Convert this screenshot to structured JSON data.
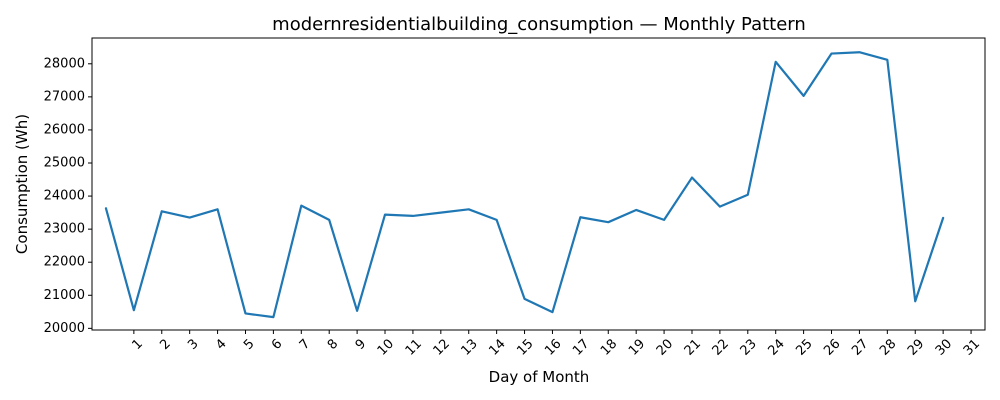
{
  "chart_data": {
    "type": "line",
    "title": "modernresidentialbuilding_consumption — Monthly Pattern",
    "xlabel": "Day of Month",
    "ylabel": "Consumption (Wh)",
    "x_ticks": [
      "1",
      "2",
      "3",
      "4",
      "5",
      "6",
      "7",
      "8",
      "9",
      "10",
      "11",
      "12",
      "13",
      "14",
      "15",
      "16",
      "17",
      "18",
      "19",
      "20",
      "21",
      "22",
      "23",
      "24",
      "25",
      "26",
      "27",
      "28",
      "29",
      "30",
      "31"
    ],
    "y_ticks": [
      20000,
      21000,
      22000,
      23000,
      24000,
      25000,
      26000,
      27000,
      28000
    ],
    "xlim": [
      -0.5,
      31.5
    ],
    "ylim": [
      19950,
      28780
    ],
    "grid": false,
    "series": [
      {
        "color": "#1f77b4",
        "x": [
          0,
          1,
          2,
          3,
          4,
          5,
          6,
          7,
          8,
          9,
          10,
          11,
          12,
          13,
          14,
          15,
          16,
          17,
          18,
          19,
          20,
          21,
          22,
          23,
          24,
          25,
          26,
          27,
          28,
          29,
          30
        ],
        "values": [
          23630,
          20550,
          23540,
          23350,
          23600,
          20450,
          20340,
          23710,
          23280,
          20530,
          23440,
          23400,
          23500,
          23600,
          23280,
          20890,
          20490,
          23360,
          23210,
          23580,
          23280,
          24560,
          23680,
          24040,
          28060,
          27030,
          28310,
          28350,
          28120,
          20820,
          23340
        ]
      }
    ]
  }
}
